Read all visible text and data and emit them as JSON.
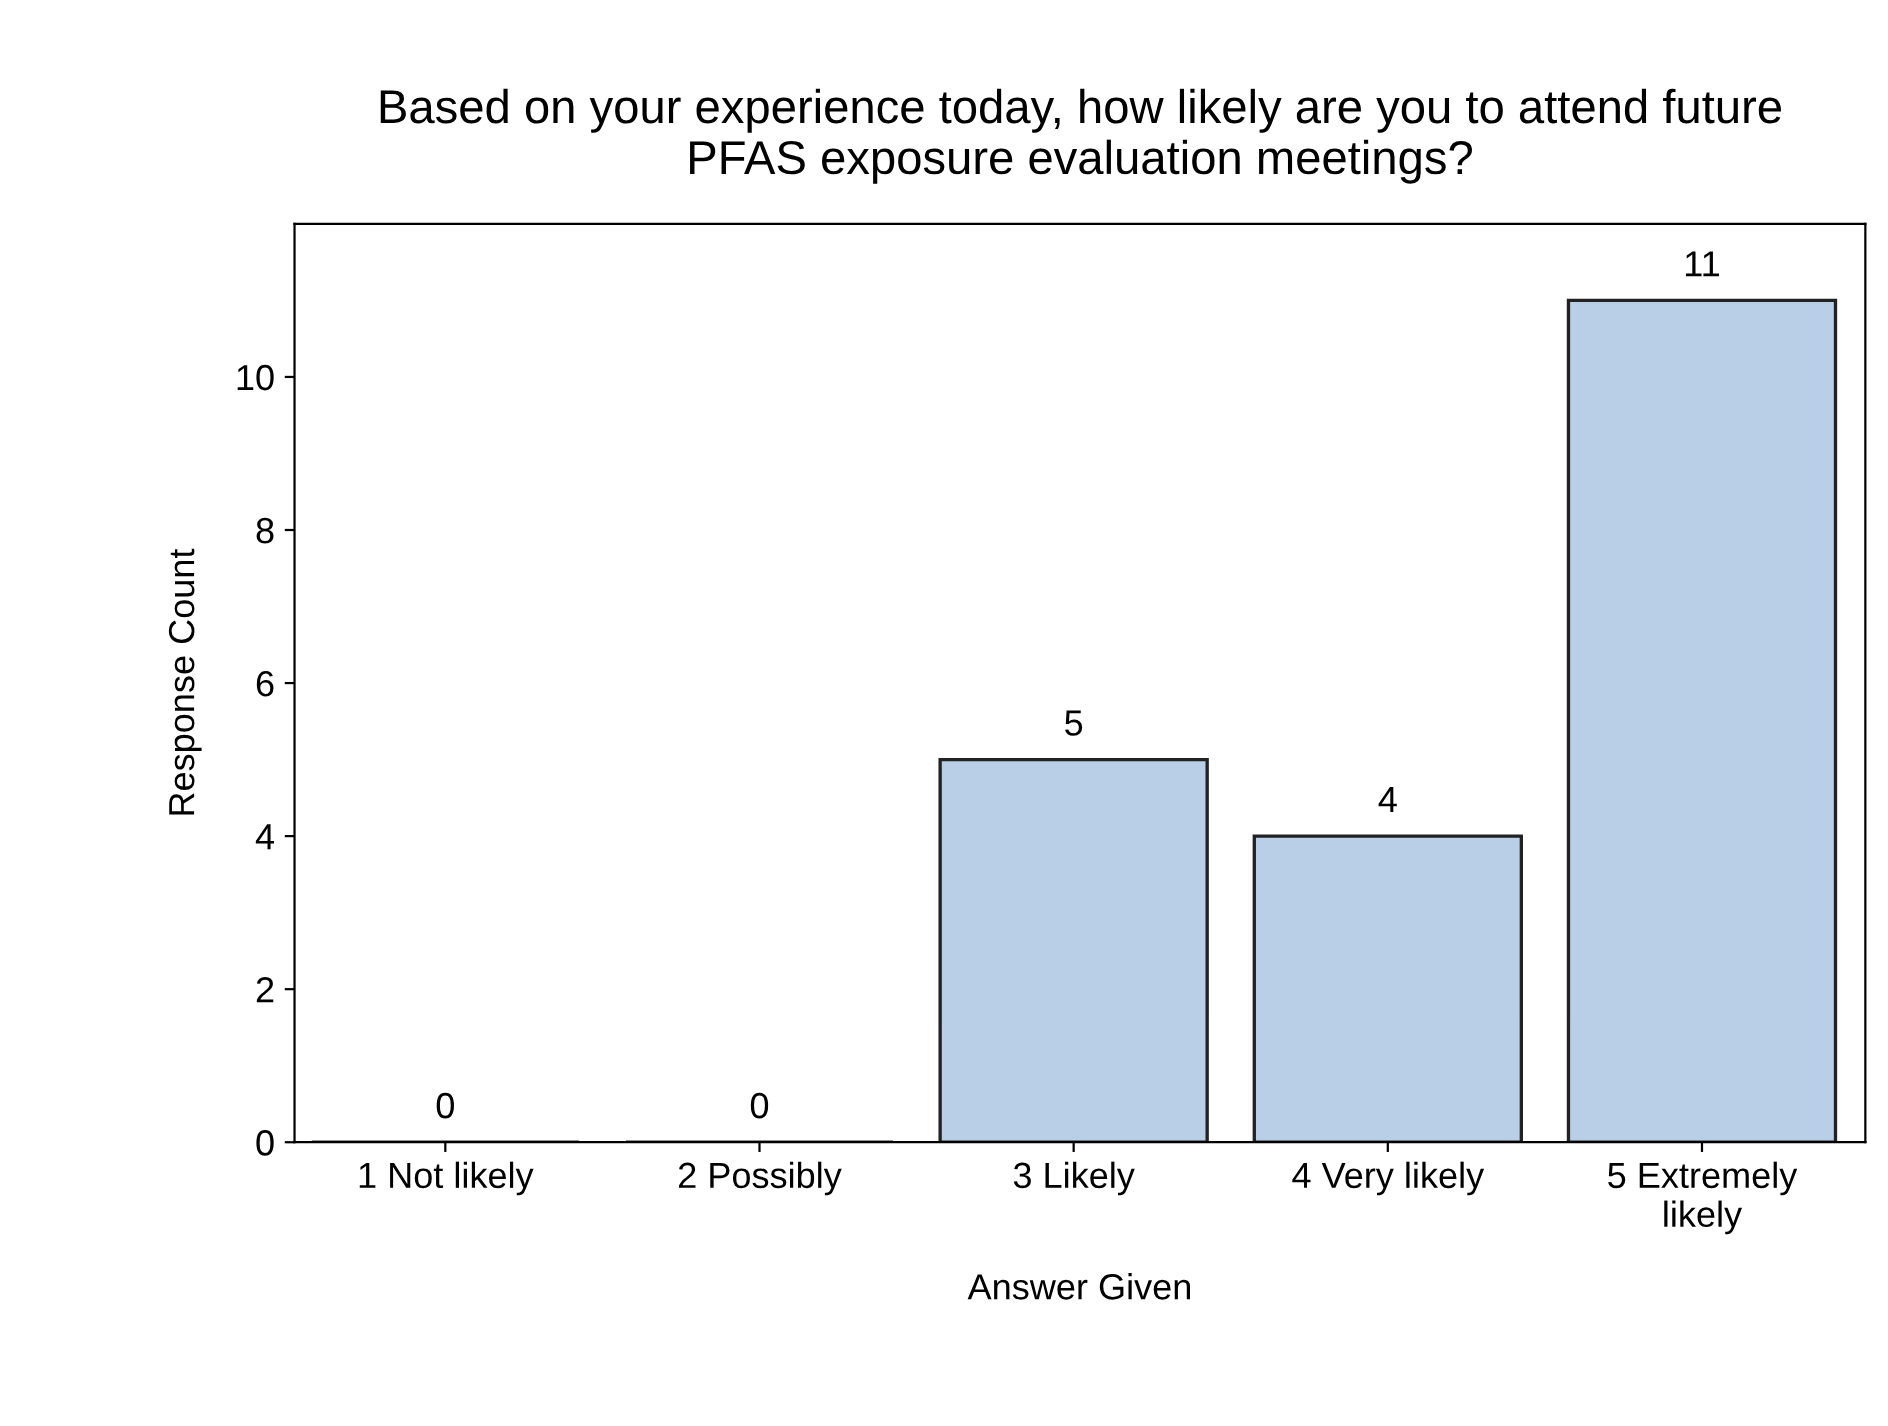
{
  "chart_data": {
    "type": "bar",
    "title": "Based on your experience today, how likely are you to attend future\nPFAS exposure evaluation meetings?",
    "xlabel": "Answer Given",
    "ylabel": "Response Count",
    "categories": [
      "1 Not likely",
      "2 Possibly",
      "3 Likely",
      "4 Very likely",
      "5 Extremely\nlikely"
    ],
    "values": [
      0,
      0,
      5,
      4,
      11
    ],
    "color": "#b9cfe7",
    "ylim": [
      0,
      12
    ],
    "yticks": [
      0,
      2,
      4,
      6,
      8,
      10
    ],
    "grid": false,
    "data_labels": true
  }
}
